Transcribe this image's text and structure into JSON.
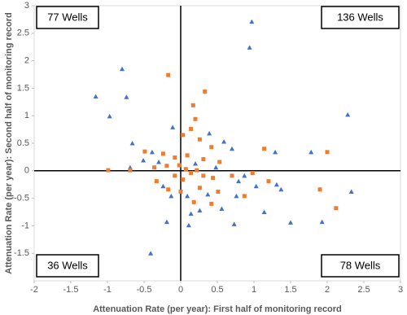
{
  "chart_data": {
    "type": "scatter",
    "x_label": "Attenuation Rate (per year): First half of monitoring record",
    "y_label": "Attenuation Rate (per year): Second half of monitoring record",
    "xlim": [
      -2,
      3
    ],
    "ylim": [
      -2,
      3
    ],
    "xticks": [
      -2,
      -1.5,
      -1,
      -0.5,
      0,
      0.5,
      1,
      1.5,
      2,
      2.5,
      3
    ],
    "yticks": [
      -1.5,
      -1,
      -0.5,
      0,
      0.5,
      1,
      1.5,
      2,
      2.5,
      3
    ],
    "annotations": [
      "77 Wells",
      "136 Wells",
      "36 Wells",
      "78 Wells"
    ],
    "series": [
      {
        "color": "#4472c4",
        "marker": "triangle",
        "x": [
          0.97,
          0.94,
          -0.8,
          -1.16,
          -0.74,
          -0.97,
          2.28,
          -0.11,
          -0.66,
          0.39,
          0.59,
          0.7,
          1.29,
          1.78,
          -0.39,
          -0.51,
          -0.3,
          -0.69,
          0.2,
          0.48,
          0.87,
          0.79,
          1.03,
          1.31,
          1.37,
          2.33,
          -0.24,
          -0.13,
          0.09,
          0.37,
          0.76,
          0.26,
          0.56,
          1.14,
          0.14,
          -0.19,
          0.73,
          1.5,
          1.93,
          0.11,
          -0.41
        ],
        "values": [
          2.71,
          2.24,
          1.85,
          1.35,
          1.34,
          0.99,
          1.02,
          0.79,
          0.5,
          0.68,
          0.53,
          0.4,
          0.34,
          0.34,
          0.34,
          0.19,
          0.16,
          0.06,
          0.13,
          0.06,
          -0.09,
          -0.19,
          -0.28,
          -0.25,
          -0.34,
          -0.38,
          -0.28,
          -0.46,
          -0.46,
          -0.43,
          -0.46,
          -0.72,
          -0.69,
          -0.75,
          -0.78,
          -0.93,
          -0.97,
          -0.94,
          -0.93,
          -0.99,
          -1.5
        ]
      },
      {
        "color": "#ed7d31",
        "marker": "square",
        "x": [
          -0.17,
          0.33,
          0.17,
          0.2,
          0.14,
          0.03,
          0.26,
          -0.49,
          0.42,
          1.14,
          2.0,
          -0.24,
          -0.08,
          0.09,
          0.31,
          0.53,
          -0.69,
          -0.99,
          -0.36,
          -0.19,
          -0.02,
          0.07,
          0.14,
          0.22,
          0.31,
          -0.08,
          0.03,
          0.44,
          0.7,
          0.98,
          1.2,
          -0.33,
          -0.17,
          0,
          0.26,
          0.51,
          0.87,
          1.9,
          2.12,
          0.18,
          0.42
        ],
        "values": [
          1.74,
          1.44,
          1.19,
          0.94,
          0.76,
          0.65,
          0.57,
          0.35,
          0.43,
          0.4,
          0.34,
          0.31,
          0.24,
          0.28,
          0.21,
          0.16,
          0.01,
          0.01,
          0.06,
          0.09,
          0.1,
          0.03,
          -0.04,
          0.01,
          -0.09,
          -0.09,
          -0.16,
          -0.13,
          -0.09,
          -0.04,
          -0.19,
          -0.19,
          -0.34,
          -0.38,
          -0.31,
          -0.38,
          -0.46,
          -0.34,
          -0.68,
          -0.57,
          -0.6
        ]
      }
    ]
  }
}
